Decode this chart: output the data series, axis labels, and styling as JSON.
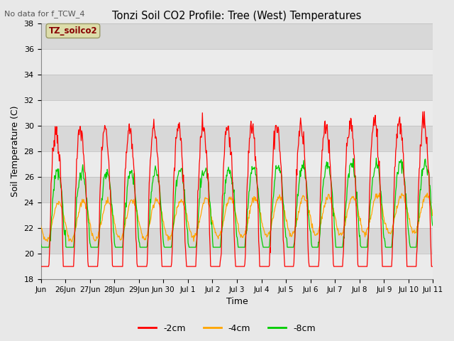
{
  "title": "Tonzi Soil CO2 Profile: Tree (West) Temperatures",
  "subtitle": "No data for f_TCW_4",
  "xlabel": "Time",
  "ylabel": "Soil Temperature (C)",
  "ylim": [
    18,
    38
  ],
  "yticks": [
    18,
    20,
    22,
    24,
    26,
    28,
    30,
    32,
    34,
    36,
    38
  ],
  "xtick_labels": [
    "Jun",
    "26Jun",
    "27Jun",
    "28Jun",
    "29Jun",
    "Jun 30",
    "Jul 1",
    "Jul 2",
    "Jul 3",
    "Jul 4",
    "Jul 5",
    "Jul 6",
    "Jul 7",
    "Jul 8",
    "Jul 9",
    "Jul 10",
    "Jul 11"
  ],
  "legend_labels": [
    "-2cm",
    "-4cm",
    "-8cm"
  ],
  "legend_colors": [
    "#ff0000",
    "#ffa500",
    "#00cc00"
  ],
  "line_colors": [
    "#ff0000",
    "#ffa500",
    "#00cc00"
  ],
  "bg_color": "#e8e8e8",
  "plot_bg_light": "#ebebeb",
  "plot_bg_dark": "#d8d8d8",
  "annotation_box_text": "TZ_soilco2",
  "annotation_box_color": "#ddddaa",
  "annotation_text_color": "#880000",
  "figsize": [
    6.4,
    4.8
  ],
  "dpi": 100
}
